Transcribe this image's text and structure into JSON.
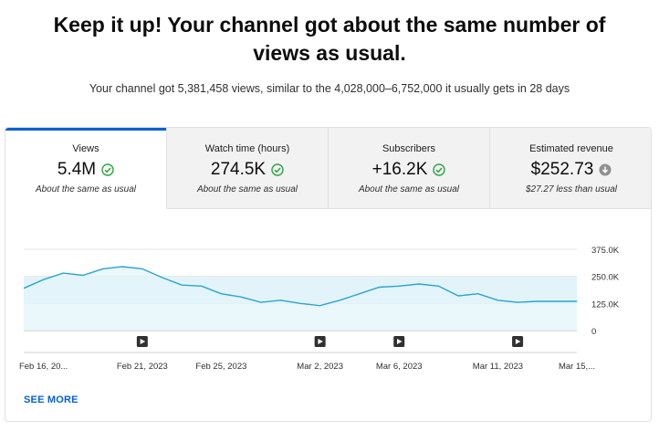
{
  "headline": {
    "line1": "Keep it up! Your channel got about the same number of",
    "line2": "views as usual."
  },
  "subline": "Your channel got 5,381,458 views, similar to the 4,028,000–6,752,000 it usually gets in 28 days",
  "tabs": [
    {
      "label": "Views",
      "value": "5.4M",
      "note": "About the same as usual",
      "icon": "check-circle-icon",
      "active": true
    },
    {
      "label": "Watch time (hours)",
      "value": "274.5K",
      "note": "About the same as usual",
      "icon": "check-circle-icon",
      "active": false
    },
    {
      "label": "Subscribers",
      "value": "+16.2K",
      "note": "About the same as usual",
      "icon": "check-circle-icon",
      "active": false
    },
    {
      "label": "Estimated revenue",
      "value": "$252.73",
      "note": "$27.27 less than usual",
      "icon": "arrow-down-circle-icon",
      "active": false
    }
  ],
  "colors": {
    "accent": "#065fd4",
    "check": "#2ba640",
    "down": "#909090",
    "line": "#2ba4d0",
    "area": "#e3f4fa",
    "band": "#bfe6f5"
  },
  "see_more": "SEE MORE",
  "chart_data": {
    "type": "area",
    "x": [
      "Feb 15",
      "Feb 16",
      "Feb 17",
      "Feb 18",
      "Feb 19",
      "Feb 20",
      "Feb 21",
      "Feb 22",
      "Feb 23",
      "Feb 24",
      "Feb 25",
      "Feb 26",
      "Feb 27",
      "Feb 28",
      "Mar 1",
      "Mar 2",
      "Mar 3",
      "Mar 4",
      "Mar 5",
      "Mar 6",
      "Mar 7",
      "Mar 8",
      "Mar 9",
      "Mar 10",
      "Mar 11",
      "Mar 12",
      "Mar 13",
      "Mar 14",
      "Mar 15"
    ],
    "series": [
      {
        "values": [
          195000,
          235000,
          265000,
          255000,
          285000,
          295000,
          285000,
          245000,
          210000,
          205000,
          170000,
          155000,
          130000,
          140000,
          125000,
          115000,
          140000,
          170000,
          200000,
          205000,
          215000,
          205000,
          160000,
          170000,
          140000,
          130000,
          135000,
          135000,
          135000
        ]
      }
    ],
    "band": [
      125000,
      250000
    ],
    "xticks": [
      "Feb 16, 20...",
      "Feb 21, 2023",
      "Feb 25, 2023",
      "Mar 2, 2023",
      "Mar 6, 2023",
      "Mar 11, 2023",
      "Mar 15,..."
    ],
    "xtick_dates": [
      "Feb 16",
      "Feb 21",
      "Feb 25",
      "Mar 2",
      "Mar 6",
      "Mar 11",
      "Mar 15"
    ],
    "yticks": [
      "0",
      "125.0K",
      "250.0K",
      "375.0K"
    ],
    "ytick_values": [
      0,
      125000,
      250000,
      375000
    ],
    "ylim": [
      0,
      375000
    ],
    "markers": [
      "Feb 21",
      "Mar 2",
      "Mar 6",
      "Mar 12"
    ],
    "marker_icon": "play-icon",
    "grid": true
  }
}
